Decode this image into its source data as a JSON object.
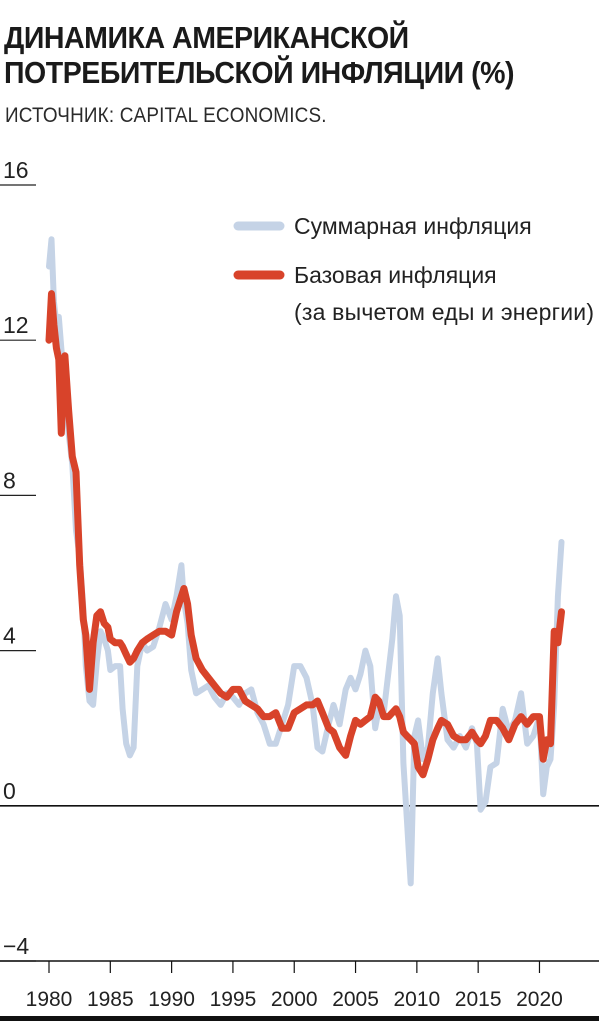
{
  "title_line1": "ДИНАМИКА АМЕРИКАНСКОЙ",
  "title_line2": "ПОТРЕБИТЕЛЬСКОЙ ИНФЛЯЦИИ (%)",
  "source": "ИСТОЧНИК: CAPITAL ECONOMICS.",
  "chart_data": {
    "type": "line",
    "ylim": [
      -4,
      16
    ],
    "xlim": [
      1980,
      2022
    ],
    "y_ticks": [
      "16",
      "12",
      "8",
      "4",
      "0",
      "−4"
    ],
    "y_tick_values": [
      16,
      12,
      8,
      4,
      0,
      -4
    ],
    "x_ticks": [
      "1980",
      "1985",
      "1990",
      "1995",
      "2000",
      "2005",
      "2010",
      "2015",
      "2020"
    ],
    "x_tick_values": [
      1980,
      1985,
      1990,
      1995,
      2000,
      2005,
      2010,
      2015,
      2020
    ],
    "zero_line": true,
    "legend_position": "top-right",
    "colors": {
      "headline": "#c5d3e6",
      "core": "#d8432a",
      "axis": "#222222"
    },
    "series": [
      {
        "name": "Суммарная инфляция",
        "legend_lines": [
          "Суммарная инфляция"
        ],
        "x": [
          1980.0,
          1980.2,
          1980.4,
          1980.6,
          1980.8,
          1981.0,
          1981.3,
          1981.6,
          1981.9,
          1982.2,
          1982.5,
          1982.8,
          1983.0,
          1983.3,
          1983.6,
          1983.9,
          1984.2,
          1984.5,
          1984.8,
          1985.0,
          1985.4,
          1985.8,
          1986.0,
          1986.3,
          1986.6,
          1986.9,
          1987.2,
          1987.6,
          1988.0,
          1988.5,
          1989.0,
          1989.5,
          1990.0,
          1990.4,
          1990.8,
          1991.0,
          1991.3,
          1991.6,
          1992.0,
          1992.5,
          1993.0,
          1993.5,
          1994.0,
          1994.5,
          1995.0,
          1995.5,
          1996.0,
          1996.5,
          1997.0,
          1997.5,
          1998.0,
          1998.5,
          1999.0,
          1999.5,
          2000.0,
          2000.5,
          2001.0,
          2001.5,
          2001.9,
          2002.3,
          2002.8,
          2003.2,
          2003.7,
          2004.2,
          2004.6,
          2005.0,
          2005.4,
          2005.8,
          2006.2,
          2006.6,
          2006.9,
          2007.3,
          2007.7,
          2008.0,
          2008.3,
          2008.6,
          2008.9,
          2009.2,
          2009.5,
          2009.8,
          2010.1,
          2010.5,
          2010.9,
          2011.3,
          2011.7,
          2012.0,
          2012.5,
          2013.0,
          2013.5,
          2014.0,
          2014.5,
          2014.9,
          2015.2,
          2015.6,
          2016.0,
          2016.5,
          2017.0,
          2017.5,
          2018.0,
          2018.5,
          2019.0,
          2019.5,
          2020.0,
          2020.3,
          2020.6,
          2020.9,
          2021.2,
          2021.5,
          2021.8
        ],
        "values": [
          13.9,
          14.6,
          13.0,
          12.4,
          12.6,
          11.8,
          10.8,
          9.6,
          8.8,
          7.1,
          6.4,
          5.1,
          3.6,
          2.7,
          2.6,
          3.7,
          4.5,
          4.3,
          4.0,
          3.5,
          3.6,
          3.6,
          2.5,
          1.6,
          1.3,
          1.5,
          3.6,
          4.2,
          4.0,
          4.1,
          4.6,
          5.2,
          4.8,
          5.4,
          6.2,
          5.3,
          4.7,
          3.5,
          2.9,
          3.0,
          3.1,
          2.8,
          2.6,
          2.9,
          2.8,
          2.6,
          2.9,
          3.0,
          2.4,
          2.1,
          1.6,
          1.6,
          2.1,
          2.6,
          3.6,
          3.6,
          3.3,
          2.6,
          1.5,
          1.4,
          2.1,
          2.6,
          2.1,
          3.0,
          3.3,
          3.0,
          3.4,
          4.0,
          3.6,
          2.0,
          2.5,
          2.4,
          3.5,
          4.3,
          5.4,
          4.9,
          1.1,
          -0.4,
          -2.0,
          1.8,
          2.2,
          1.2,
          1.5,
          2.9,
          3.8,
          2.9,
          1.7,
          1.5,
          1.8,
          1.5,
          2.0,
          1.6,
          -0.1,
          0.1,
          1.0,
          1.1,
          2.5,
          1.9,
          2.2,
          2.9,
          1.6,
          1.8,
          2.3,
          0.3,
          1.0,
          1.2,
          2.6,
          5.4,
          6.8
        ]
      },
      {
        "name": "Базовая инфляция (за вычетом еды и энергии)",
        "legend_lines": [
          "Базовая инфляция",
          "(за вычетом еды и энергии)"
        ],
        "x": [
          1980.0,
          1980.2,
          1980.4,
          1980.6,
          1980.8,
          1981.0,
          1981.3,
          1981.6,
          1981.9,
          1982.2,
          1982.5,
          1982.8,
          1983.0,
          1983.3,
          1983.6,
          1983.9,
          1984.2,
          1984.5,
          1984.8,
          1985.0,
          1985.4,
          1985.8,
          1986.0,
          1986.3,
          1986.6,
          1986.9,
          1987.2,
          1987.6,
          1988.0,
          1988.5,
          1989.0,
          1989.5,
          1990.0,
          1990.4,
          1990.8,
          1991.0,
          1991.3,
          1991.6,
          1992.0,
          1992.5,
          1993.0,
          1993.5,
          1994.0,
          1994.5,
          1995.0,
          1995.5,
          1996.0,
          1996.5,
          1997.0,
          1997.5,
          1998.0,
          1998.5,
          1999.0,
          1999.5,
          2000.0,
          2000.5,
          2001.0,
          2001.5,
          2001.9,
          2002.3,
          2002.8,
          2003.2,
          2003.7,
          2004.2,
          2004.6,
          2005.0,
          2005.4,
          2005.8,
          2006.2,
          2006.6,
          2006.9,
          2007.3,
          2007.7,
          2008.0,
          2008.3,
          2008.6,
          2008.9,
          2009.2,
          2009.5,
          2009.8,
          2010.1,
          2010.5,
          2010.9,
          2011.3,
          2011.7,
          2012.0,
          2012.5,
          2013.0,
          2013.5,
          2014.0,
          2014.5,
          2014.9,
          2015.2,
          2015.6,
          2016.0,
          2016.5,
          2017.0,
          2017.5,
          2018.0,
          2018.5,
          2019.0,
          2019.5,
          2020.0,
          2020.3,
          2020.6,
          2020.9,
          2021.2,
          2021.5,
          2021.8
        ],
        "values": [
          12.0,
          13.2,
          12.4,
          11.8,
          11.5,
          9.6,
          11.6,
          10.2,
          9.0,
          8.6,
          6.2,
          4.8,
          4.4,
          3.0,
          4.2,
          4.9,
          5.0,
          4.7,
          4.6,
          4.3,
          4.2,
          4.2,
          4.1,
          3.9,
          3.7,
          3.8,
          4.0,
          4.2,
          4.3,
          4.4,
          4.5,
          4.5,
          4.4,
          5.0,
          5.4,
          5.6,
          5.2,
          4.4,
          3.8,
          3.5,
          3.3,
          3.1,
          2.9,
          2.8,
          3.0,
          3.0,
          2.7,
          2.6,
          2.5,
          2.3,
          2.3,
          2.4,
          2.0,
          2.0,
          2.4,
          2.5,
          2.6,
          2.6,
          2.7,
          2.4,
          2.0,
          1.9,
          1.5,
          1.3,
          1.8,
          2.2,
          2.1,
          2.2,
          2.3,
          2.8,
          2.7,
          2.3,
          2.3,
          2.4,
          2.5,
          2.3,
          1.9,
          1.8,
          1.7,
          1.6,
          1.0,
          0.8,
          1.2,
          1.7,
          2.0,
          2.2,
          2.1,
          1.8,
          1.7,
          1.7,
          1.9,
          1.7,
          1.6,
          1.8,
          2.2,
          2.2,
          2.0,
          1.7,
          2.1,
          2.3,
          2.1,
          2.3,
          2.3,
          1.2,
          1.7,
          1.6,
          4.5,
          4.2,
          5.0
        ]
      }
    ]
  }
}
